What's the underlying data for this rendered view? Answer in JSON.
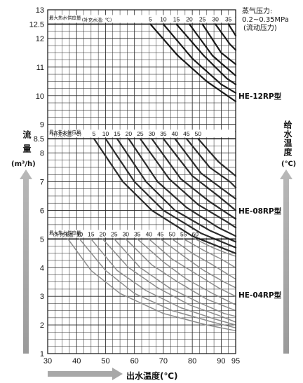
{
  "chart_data": {
    "type": "line",
    "xlabel": "出水温度(℃)",
    "ylabel_main": "流",
    "ylabel_sub": "量",
    "ylabel_unit": "(m³/h)",
    "right_axis_label": "给水温度",
    "right_axis_unit": "(℃)",
    "steam_note_title": "蒸气压力:",
    "steam_note_value": "0.2~0.35MPa",
    "steam_note_sub": "(流动压力)",
    "x_ticks": [
      "30",
      "40",
      "50",
      "60",
      "70",
      "80",
      "90",
      "95"
    ],
    "x_tick_values": [
      30,
      40,
      50,
      60,
      70,
      80,
      90,
      95
    ],
    "y_ticks": [
      "1",
      "2",
      "3",
      "4",
      "5",
      "6",
      "7",
      "8",
      "8.5",
      "9",
      "10",
      "11",
      "12",
      "12.5",
      "13"
    ],
    "y_tick_values": [
      1,
      2,
      3,
      4,
      5,
      6,
      7,
      8,
      8.5,
      9,
      10,
      11,
      12,
      12.5,
      13
    ],
    "xlim": [
      30,
      95
    ],
    "ylim": [
      1,
      13
    ],
    "grid": true,
    "panels": [
      {
        "model": "HE-12RP型",
        "color": "#1a1a1a",
        "max_flow": 12.5,
        "max_label": "最大热水供应量",
        "supply_label": "(补充水温: ℃)",
        "supply_temps": [
          "5",
          "10",
          "15",
          "20",
          "25",
          "30",
          "35"
        ],
        "series": [
          {
            "name": "5",
            "x": [
              65.5,
              75,
              85,
              95
            ],
            "y": [
              12.5,
              11.4,
              10.5,
              9.8
            ]
          },
          {
            "name": "10",
            "x": [
              70,
              80,
              90,
              95
            ],
            "y": [
              12.5,
              11.3,
              10.4,
              10.1
            ]
          },
          {
            "name": "15",
            "x": [
              74.5,
              84,
              92,
              95
            ],
            "y": [
              12.5,
              11.4,
              10.6,
              10.4
            ]
          },
          {
            "name": "20",
            "x": [
              79,
              87,
              95
            ],
            "y": [
              12.5,
              11.4,
              10.7
            ]
          },
          {
            "name": "25",
            "x": [
              83.5,
              90,
              95
            ],
            "y": [
              12.5,
              11.5,
              11.1
            ]
          },
          {
            "name": "30",
            "x": [
              88,
              93,
              95
            ],
            "y": [
              12.5,
              11.8,
              11.6
            ]
          },
          {
            "name": "35",
            "x": [
              92.5,
              95
            ],
            "y": [
              12.5,
              12.1
            ]
          }
        ]
      },
      {
        "model": "HE-08RP型",
        "color": "#2b2b2b",
        "max_flow": 8.5,
        "max_label": "最大热水供应量",
        "supply_label": "(补充水温: ℃)",
        "supply_temps": [
          "5",
          "10",
          "15",
          "20",
          "25",
          "30",
          "35",
          "40",
          "45",
          "50"
        ],
        "series": [
          {
            "name": "5",
            "x": [
              46,
              56,
              66,
              80,
              95
            ],
            "y": [
              8.5,
              7.0,
              6.0,
              5.1,
              4.5
            ]
          },
          {
            "name": "10",
            "x": [
              50,
              60,
              70,
              83,
              95
            ],
            "y": [
              8.5,
              7.0,
              6.0,
              5.2,
              4.7
            ]
          },
          {
            "name": "15",
            "x": [
              54,
              64,
              74,
              86,
              95
            ],
            "y": [
              8.5,
              7.0,
              6.0,
              5.3,
              4.9
            ]
          },
          {
            "name": "20",
            "x": [
              58,
              68,
              78,
              89,
              95
            ],
            "y": [
              8.5,
              7.0,
              6.1,
              5.4,
              5.1
            ]
          },
          {
            "name": "25",
            "x": [
              62,
              72,
              82,
              92,
              95
            ],
            "y": [
              8.5,
              7.1,
              6.2,
              5.6,
              5.4
            ]
          },
          {
            "name": "30",
            "x": [
              66,
              76,
              86,
              95
            ],
            "y": [
              8.5,
              7.1,
              6.3,
              5.7
            ]
          },
          {
            "name": "35",
            "x": [
              70,
              80,
              89,
              95
            ],
            "y": [
              8.5,
              7.2,
              6.5,
              6.0
            ]
          },
          {
            "name": "40",
            "x": [
              74,
              83,
              91,
              95
            ],
            "y": [
              8.5,
              7.3,
              6.7,
              6.4
            ]
          },
          {
            "name": "45",
            "x": [
              78,
              86,
              93,
              95
            ],
            "y": [
              8.5,
              7.5,
              7.0,
              6.8
            ]
          },
          {
            "name": "50",
            "x": [
              82,
              89,
              95
            ],
            "y": [
              8.5,
              7.7,
              7.2
            ]
          }
        ]
      },
      {
        "model": "HE-04RP型",
        "color": "#8c8c8c",
        "max_flow": 5,
        "max_label": "最大热水供应量",
        "supply_label": "(补充水温: ℃)",
        "supply_temps": [
          "5",
          "10",
          "15",
          "20",
          "25",
          "30",
          "35",
          "40",
          "45",
          "50",
          "55",
          "60"
        ],
        "series": [
          {
            "name": "5",
            "x": [
              37,
              45,
              55,
              70,
              85,
              95
            ],
            "y": [
              5.0,
              3.9,
              3.1,
              2.4,
              2.0,
              1.8
            ]
          },
          {
            "name": "10",
            "x": [
              41,
              50,
              60,
              73,
              87,
              95
            ],
            "y": [
              5.0,
              3.9,
              3.1,
              2.5,
              2.1,
              1.9
            ]
          },
          {
            "name": "15",
            "x": [
              45,
              54,
              64,
              76,
              88,
              95
            ],
            "y": [
              5.0,
              3.9,
              3.2,
              2.6,
              2.2,
              2.0
            ]
          },
          {
            "name": "20",
            "x": [
              49,
              58,
              68,
              79,
              90,
              95
            ],
            "y": [
              5.0,
              4.0,
              3.3,
              2.7,
              2.3,
              2.1
            ]
          },
          {
            "name": "25",
            "x": [
              53,
              62,
              72,
              82,
              91,
              95
            ],
            "y": [
              5.0,
              4.0,
              3.3,
              2.8,
              2.4,
              2.3
            ]
          },
          {
            "name": "30",
            "x": [
              57,
              66,
              75,
              85,
              95
            ],
            "y": [
              5.0,
              4.1,
              3.5,
              2.9,
              2.5
            ]
          },
          {
            "name": "35",
            "x": [
              61,
              70,
              78,
              87,
              95
            ],
            "y": [
              5.0,
              4.2,
              3.6,
              3.1,
              2.7
            ]
          },
          {
            "name": "40",
            "x": [
              65,
              73,
              81,
              89,
              95
            ],
            "y": [
              5.0,
              4.3,
              3.8,
              3.3,
              3.0
            ]
          },
          {
            "name": "45",
            "x": [
              69,
              77,
              84,
              91,
              95
            ],
            "y": [
              5.0,
              4.4,
              3.9,
              3.5,
              3.3
            ]
          },
          {
            "name": "50",
            "x": [
              73,
              80,
              87,
              95
            ],
            "y": [
              5.0,
              4.5,
              4.1,
              3.6
            ]
          },
          {
            "name": "55",
            "x": [
              77,
              84,
              90,
              95
            ],
            "y": [
              5.0,
              4.6,
              4.3,
              4.0
            ]
          },
          {
            "name": "60",
            "x": [
              81,
              87,
              92,
              95
            ],
            "y": [
              5.0,
              4.7,
              4.5,
              4.4
            ]
          }
        ]
      }
    ]
  }
}
